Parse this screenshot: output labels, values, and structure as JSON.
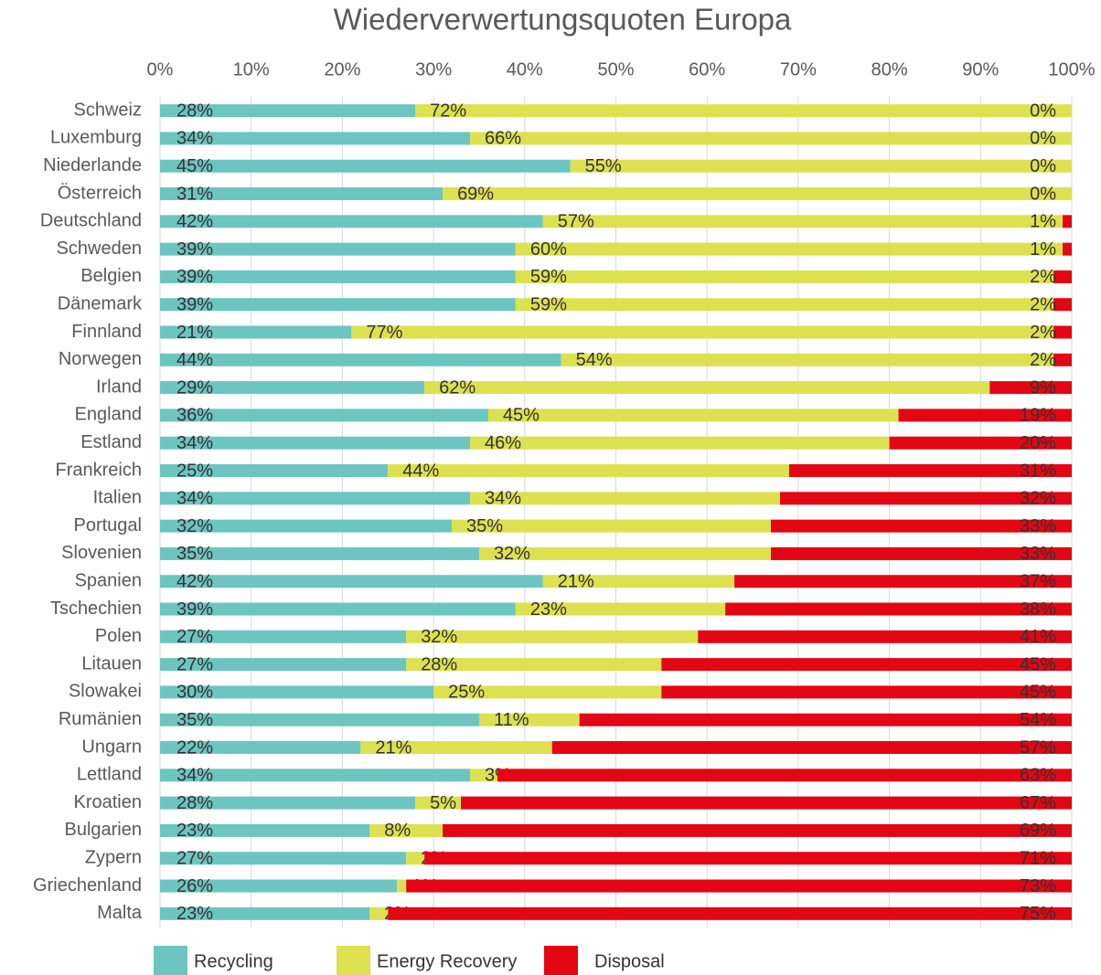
{
  "chart_data": {
    "type": "stacked-bar-horizontal",
    "title": "Wiederverwertungsquoten Europa",
    "categories": [
      "Schweiz",
      "Luxemburg",
      "Niederlande",
      "Österreich",
      "Deutschland",
      "Schweden",
      "Belgien",
      "Dänemark",
      "Finnland",
      "Norwegen",
      "Irland",
      "England",
      "Estland",
      "Frankreich",
      "Italien",
      "Portugal",
      "Slovenien",
      "Spanien",
      "Tschechien",
      "Polen",
      "Litauen",
      "Slowakei",
      "Rumänien",
      "Ungarn",
      "Lettland",
      "Kroatien",
      "Bulgarien",
      "Zypern",
      "Griechenland",
      "Malta"
    ],
    "series": [
      {
        "name": "Recycling",
        "color": "#6cc5c0",
        "values": [
          28,
          34,
          45,
          31,
          42,
          39,
          39,
          39,
          21,
          44,
          29,
          36,
          34,
          25,
          34,
          32,
          35,
          42,
          39,
          27,
          27,
          30,
          35,
          22,
          34,
          28,
          23,
          27,
          26,
          23
        ],
        "value_labels": [
          "28%",
          "34%",
          "45%",
          "31%",
          "42%",
          "39%",
          "39%",
          "39%",
          "21%",
          "44%",
          "29%",
          "36%",
          "34%",
          "25%",
          "34%",
          "32%",
          "35%",
          "42%",
          "39%",
          "27%",
          "27%",
          "30%",
          "35%",
          "22%",
          "34%",
          "28%",
          "23%",
          "27%",
          "26%",
          "23%"
        ]
      },
      {
        "name": "Energy Recovery",
        "color": "#dde14f",
        "values": [
          72,
          66,
          55,
          69,
          57,
          60,
          59,
          59,
          77,
          54,
          62,
          45,
          46,
          44,
          34,
          35,
          32,
          21,
          23,
          32,
          28,
          25,
          11,
          21,
          3,
          5,
          8,
          2,
          1,
          2
        ],
        "value_labels": [
          "72%",
          "66%",
          "55%",
          "69%",
          "57%",
          "60%",
          "59%",
          "59%",
          "77%",
          "54%",
          "62%",
          "45%",
          "46%",
          "44%",
          "34%",
          "35%",
          "32%",
          "21%",
          "23%",
          "32%",
          "28%",
          "25%",
          "11%",
          "21%",
          "3%",
          "5%",
          "8%",
          "2%",
          "1%",
          "2%"
        ]
      },
      {
        "name": "Disposal",
        "color": "#e30613",
        "values": [
          0,
          0,
          0,
          0,
          1,
          1,
          2,
          2,
          2,
          2,
          9,
          19,
          20,
          31,
          32,
          33,
          33,
          37,
          38,
          41,
          45,
          45,
          54,
          57,
          63,
          67,
          69,
          71,
          73,
          75
        ],
        "value_labels": [
          "0%",
          "0%",
          "0%",
          "0%",
          "1%",
          "1%",
          "2%",
          "2%",
          "2%",
          "2%",
          "9%",
          "19%",
          "20%",
          "31%",
          "32%",
          "33%",
          "33%",
          "37%",
          "38%",
          "41%",
          "45%",
          "45%",
          "54%",
          "57%",
          "63%",
          "67%",
          "69%",
          "71%",
          "73%",
          "75%"
        ]
      }
    ],
    "xlim": [
      0,
      100
    ],
    "xticks": [
      {
        "value": 0,
        "label": "0%"
      },
      {
        "value": 10,
        "label": "10%"
      },
      {
        "value": 20,
        "label": "20%"
      },
      {
        "value": 30,
        "label": "30%"
      },
      {
        "value": 40,
        "label": "40%"
      },
      {
        "value": 50,
        "label": "50%"
      },
      {
        "value": 60,
        "label": "60%"
      },
      {
        "value": 70,
        "label": "70%"
      },
      {
        "value": 80,
        "label": "80%"
      },
      {
        "value": 90,
        "label": "90%"
      },
      {
        "value": 100,
        "label": "100%"
      }
    ],
    "grid": true,
    "legend": "bottom"
  }
}
